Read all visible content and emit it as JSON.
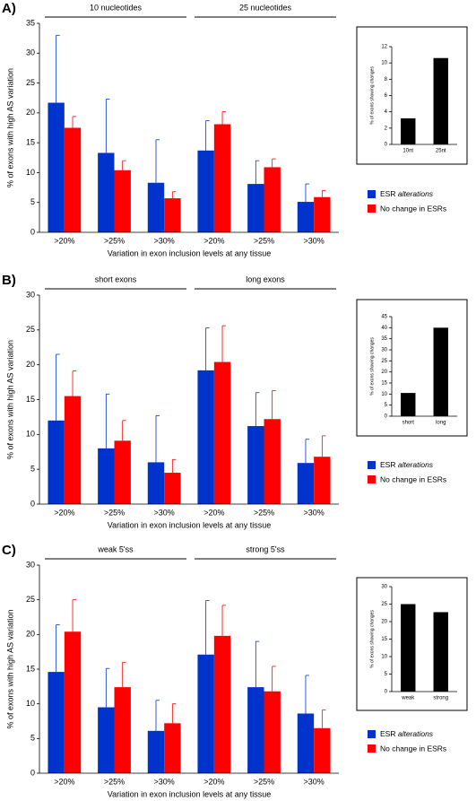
{
  "chart_data": [
    {
      "type": "bar",
      "panel_label": "A)",
      "group_labels": [
        "10 nucleotides",
        "25 nucleotides"
      ],
      "y_label": "% of exons with high AS variation",
      "x_label": "Variation in exon inclusion levels at any tissue",
      "categories": [
        ">20%",
        ">25%",
        ">30%",
        ">20%",
        ">25%",
        ">30%"
      ],
      "series": [
        {
          "name": "ESR alterations",
          "color": "#0033cc",
          "values": [
            21.7,
            13.3,
            8.3,
            13.7,
            8.1,
            5.1
          ],
          "errors": [
            11.3,
            9,
            7.2,
            5,
            3.9,
            3
          ]
        },
        {
          "name": "No change in ESRs",
          "color": "#ff0000",
          "values": [
            17.5,
            10.4,
            5.7,
            18.1,
            10.9,
            5.9
          ],
          "errors": [
            1.9,
            1.6,
            1.1,
            2.1,
            1.4,
            1.1
          ]
        }
      ],
      "ylim": [
        0,
        35
      ],
      "yticks": [
        0,
        5,
        10,
        15,
        20,
        25,
        30,
        35
      ]
    },
    {
      "type": "bar",
      "y_label": "% of exons showing changes",
      "categories": [
        "10nt",
        "25nt"
      ],
      "values": [
        3.2,
        10.6
      ],
      "color": "#000000",
      "ylim": [
        0,
        12
      ],
      "yticks": [
        0,
        2,
        4,
        6,
        8,
        10,
        12
      ]
    },
    {
      "type": "bar",
      "panel_label": "B)",
      "group_labels": [
        "short exons",
        "long exons"
      ],
      "y_label": "% of exons with high AS variation",
      "x_label": "Variation in exon inclusion levels at any tissue",
      "categories": [
        ">20%",
        ">25%",
        ">30%",
        ">20%",
        ">25%",
        ">30%"
      ],
      "series": [
        {
          "name": "ESR alterations",
          "color": "#0033cc",
          "values": [
            12,
            8,
            6,
            19.2,
            11.2,
            5.9
          ],
          "errors": [
            9.5,
            7.8,
            6.7,
            6.1,
            4.8,
            3.4
          ]
        },
        {
          "name": "No change in ESRs",
          "color": "#ff0000",
          "values": [
            15.5,
            9.1,
            4.5,
            20.4,
            12.2,
            6.8
          ],
          "errors": [
            3.6,
            2.9,
            1.9,
            5.2,
            4.1,
            3
          ]
        }
      ],
      "ylim": [
        0,
        30
      ],
      "yticks": [
        0,
        5,
        10,
        15,
        20,
        25,
        30
      ]
    },
    {
      "type": "bar",
      "y_label": "% of exons showing changes",
      "categories": [
        "short",
        "long"
      ],
      "values": [
        10.5,
        40
      ],
      "color": "#000000",
      "ylim": [
        0,
        45
      ],
      "yticks": [
        0,
        5,
        10,
        15,
        20,
        25,
        30,
        35,
        40,
        45
      ]
    },
    {
      "type": "bar",
      "panel_label": "C)",
      "group_labels": [
        "weak 5'ss",
        "strong 5'ss"
      ],
      "y_label": "% of exons with high AS variation",
      "x_label": "Variation in exon inclusion levels at any tissue",
      "categories": [
        ">20%",
        ">25%",
        ">30%",
        ">20%",
        ">25%",
        ">30%"
      ],
      "series": [
        {
          "name": "ESR alterations",
          "color": "#0033cc",
          "values": [
            14.6,
            9.5,
            6.1,
            17.1,
            12.4,
            8.6
          ],
          "errors": [
            6.8,
            5.6,
            4.4,
            7.8,
            6.6,
            5.5
          ]
        },
        {
          "name": "No change in ESRs",
          "color": "#ff0000",
          "values": [
            20.4,
            12.4,
            7.2,
            19.8,
            11.8,
            6.5
          ],
          "errors": [
            4.6,
            3.6,
            2.8,
            4.4,
            3.6,
            2.6
          ]
        }
      ],
      "ylim": [
        0,
        30
      ],
      "yticks": [
        0,
        5,
        10,
        15,
        20,
        25,
        30
      ]
    },
    {
      "type": "bar",
      "y_label": "% of exons showing changes",
      "categories": [
        "weak",
        "strong"
      ],
      "values": [
        25,
        22.7
      ],
      "color": "#000000",
      "ylim": [
        0,
        30
      ],
      "yticks": [
        0,
        5,
        10,
        15,
        20,
        25,
        30
      ]
    }
  ]
}
